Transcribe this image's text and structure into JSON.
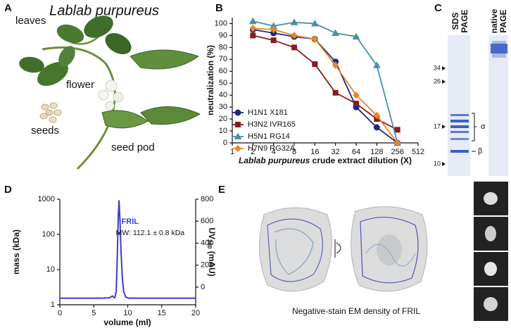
{
  "panels": {
    "A": {
      "label": "A",
      "title": "Lablab purpureus",
      "labels": [
        "leaves",
        "flower",
        "seeds",
        "seed pod"
      ]
    },
    "C": {
      "label": "C",
      "lanes": [
        [
          "SDS",
          "PAGE"
        ],
        [
          "native",
          "PAGE"
        ]
      ],
      "markers": [
        "34",
        "26",
        "17",
        "10"
      ],
      "subunits": [
        "α",
        "β"
      ]
    },
    "E": {
      "label": "E",
      "caption": "Negative-stain EM density of FRIL"
    }
  },
  "chart_data": [
    {
      "type": "line",
      "label": "B",
      "y_label": "neutralization (%)",
      "x_label": {
        "italic": "Lablab purpureus",
        "plain": " crude extract dilution (X)"
      },
      "x": [
        2,
        4,
        8,
        16,
        32,
        64,
        128,
        256
      ],
      "xscale": "log",
      "xlim": [
        1,
        512
      ],
      "xticks": [
        1,
        2,
        4,
        8,
        16,
        32,
        64,
        128,
        256,
        512
      ],
      "ylim": [
        0,
        105
      ],
      "yticks": [
        0,
        10,
        20,
        30,
        40,
        50,
        60,
        70,
        80,
        90,
        100
      ],
      "grid": false,
      "legend": "lower left",
      "series": [
        {
          "name": "H1N1 X181",
          "color": "#1f2a7a",
          "marker": "circle",
          "values": [
            95,
            92,
            89,
            87,
            68,
            30,
            13,
            0
          ]
        },
        {
          "name": "H3N2 IVR165",
          "color": "#8b1a1a",
          "marker": "square",
          "values": [
            90,
            86,
            80,
            66,
            42,
            33,
            20,
            11
          ]
        },
        {
          "name": "H5N1 RG14",
          "color": "#4a8fa6",
          "marker": "triangle",
          "values": [
            102,
            98,
            101,
            100,
            92,
            89,
            65,
            0
          ]
        },
        {
          "name": "H7N9 RG32A",
          "color": "#e8862a",
          "marker": "diamond",
          "values": [
            96,
            95,
            90,
            87,
            65,
            40,
            23,
            0
          ]
        }
      ]
    },
    {
      "type": "line",
      "label": "D",
      "y_label": "mass (kDa)",
      "y2_label": {
        "main": "UV",
        "sub": "280",
        "unit": " (mAU)"
      },
      "x_label": "volume (ml)",
      "xlim": [
        0,
        20
      ],
      "xticks": [
        0,
        5,
        10,
        15,
        20
      ],
      "yscale": "log",
      "ylim": [
        1,
        1000
      ],
      "yticks": [
        1,
        10,
        100,
        1000
      ],
      "y2lim": [
        -160,
        800
      ],
      "y2ticks": [
        0,
        200,
        400,
        600,
        800
      ],
      "grid": false,
      "annotations": [
        "MW: 112.1 ± 0.8 kDa"
      ],
      "series": [
        {
          "name": "FRIL",
          "color": "#1a1a1a",
          "x": [
            8.45,
            8.85
          ],
          "values": [
            120,
            106
          ]
        },
        {
          "color": "#3a3ec9",
          "axis": "y2",
          "x": [
            0,
            2,
            4,
            6,
            7,
            7.4,
            7.6,
            7.75,
            7.9,
            8.1,
            8.3,
            8.45,
            8.6,
            8.72,
            8.85,
            9.0,
            9.2,
            9.4,
            9.7,
            10.2,
            12,
            14,
            16,
            18,
            20
          ],
          "values": [
            -100,
            -100,
            -100,
            -100,
            -98,
            -95,
            -85,
            -80,
            -92,
            -95,
            -40,
            250,
            640,
            790,
            620,
            330,
            90,
            -40,
            -90,
            -100,
            -100,
            -100,
            -100,
            -100,
            -100
          ]
        }
      ]
    }
  ]
}
